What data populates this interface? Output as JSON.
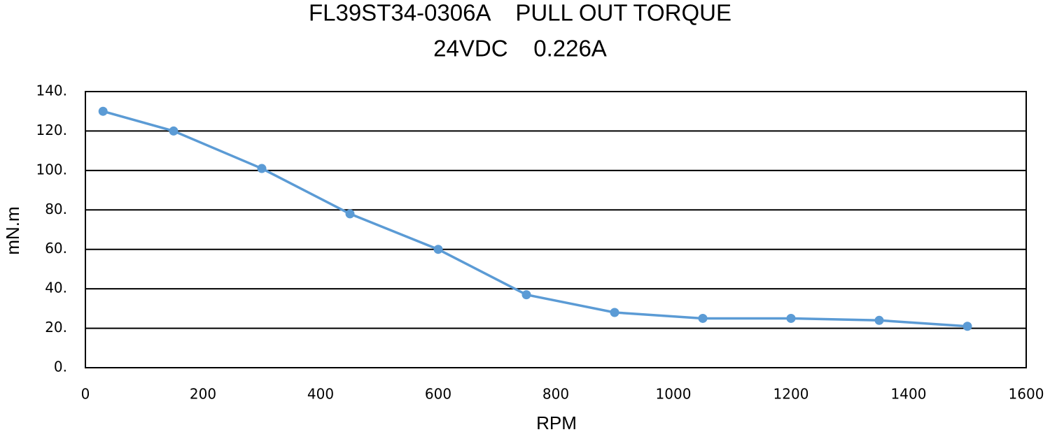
{
  "chart_data": {
    "type": "line",
    "title": "FL39ST34-0306A    PULL OUT TORQUE",
    "subtitle": "24VDC    0.226A",
    "x_label": "RPM",
    "y_label": "mN.m",
    "x": [
      30,
      150,
      300,
      450,
      600,
      750,
      900,
      1050,
      1200,
      1350,
      1500
    ],
    "values": [
      130,
      120,
      101,
      78,
      60,
      37,
      28,
      25,
      25,
      24,
      21
    ],
    "color": "#5b9bd5",
    "xlim": [
      0,
      1600
    ],
    "xticks": [
      0,
      200,
      400,
      600,
      800,
      1000,
      1200,
      1400,
      1600
    ],
    "ylim": [
      0,
      140
    ],
    "yticks": [
      {
        "value": 0,
        "label": "0."
      },
      {
        "value": 20,
        "label": "20."
      },
      {
        "value": 40,
        "label": "40."
      },
      {
        "value": 60,
        "label": "60."
      },
      {
        "value": 80,
        "label": "80."
      },
      {
        "value": 100,
        "label": "100."
      },
      {
        "value": 120,
        "label": "120."
      },
      {
        "value": 140,
        "label": "140."
      }
    ],
    "grid": true
  }
}
